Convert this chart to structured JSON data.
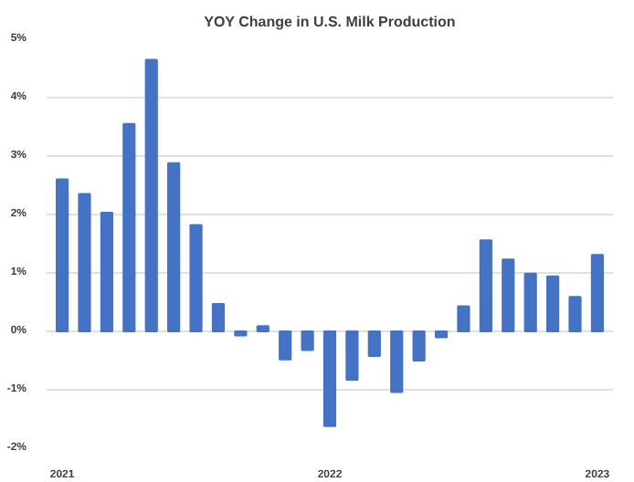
{
  "chart_data": {
    "type": "bar",
    "title": "YOY Change in U.S. Milk Production",
    "categories": [
      "2021",
      null,
      null,
      null,
      null,
      null,
      null,
      null,
      null,
      null,
      null,
      null,
      "2022",
      null,
      null,
      null,
      null,
      null,
      null,
      null,
      null,
      null,
      null,
      null,
      "2023"
    ],
    "values": [
      2.6,
      2.35,
      2.03,
      3.55,
      4.65,
      2.88,
      1.82,
      0.47,
      -0.07,
      0.09,
      -0.48,
      -0.32,
      -1.62,
      -0.83,
      -0.42,
      -1.04,
      -0.5,
      -0.1,
      0.43,
      1.56,
      1.23,
      0.99,
      0.94,
      0.59,
      1.31
    ],
    "color": "#4472c4",
    "ylim": [
      -2,
      5
    ],
    "yticks": [
      {
        "value": -2,
        "label": "-2%"
      },
      {
        "value": -1,
        "label": "-1%"
      },
      {
        "value": 0,
        "label": "0%"
      },
      {
        "value": 1,
        "label": "1%"
      },
      {
        "value": 2,
        "label": "2%"
      },
      {
        "value": 3,
        "label": "3%"
      },
      {
        "value": 4,
        "label": "4%"
      },
      {
        "value": 5,
        "label": "5%"
      }
    ],
    "grid": "y"
  }
}
